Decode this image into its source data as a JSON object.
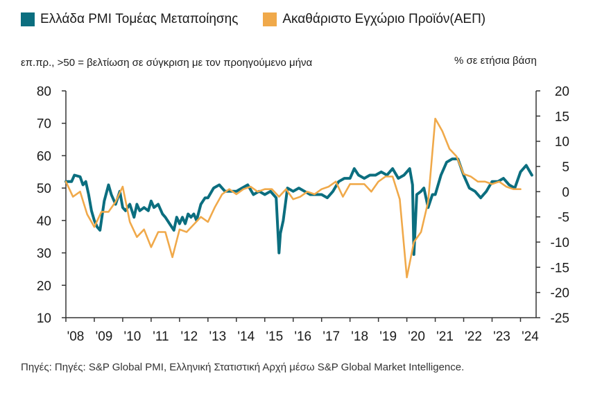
{
  "legend": {
    "series1": "Ελλάδα PMI Τομέας Μεταποίησης",
    "series2": "Ακαθάριστο Εγχώριο Προϊόν(ΑΕΠ)"
  },
  "axis_notes": {
    "left": "επ.πρ., >50 = βελτίωση σε σύγκριση με τον προηγούμενο μήνα",
    "right": "% σε ετήσια βάση"
  },
  "source": "Πηγές: Πηγές: S&P Global PMI, Ελληνική Στατιστική Αρχή μέσω S&P Global Market Intelligence.",
  "colors": {
    "pmi": "#0b6e7f",
    "gdp": "#f0a94a",
    "axis": "#333333"
  },
  "chart_data": {
    "type": "line",
    "x_tick_labels": [
      "'08",
      "'09",
      "'10",
      "'11",
      "'12",
      "'13",
      "'14",
      "'15",
      "'16",
      "'17",
      "'18",
      "'19",
      "'20",
      "'21",
      "'22",
      "'23",
      "'24"
    ],
    "y_left": {
      "ticks": [
        "80",
        "70",
        "60",
        "50",
        "40",
        "30",
        "20",
        "10"
      ],
      "min": 10,
      "max": 80
    },
    "y_right": {
      "ticks": [
        "20",
        "15",
        "10",
        "5",
        "0",
        "-5",
        "-10",
        "-15",
        "-20",
        "-25"
      ],
      "min": -25,
      "max": 20
    },
    "series": [
      {
        "name": "Ελλάδα PMI Τομέας Μεταποίησης",
        "axis": "left",
        "x": [
          2008.0,
          2008.2,
          2008.3,
          2008.5,
          2008.6,
          2008.7,
          2008.8,
          2008.9,
          2009.0,
          2009.1,
          2009.2,
          2009.35,
          2009.5,
          2009.6,
          2009.75,
          2009.9,
          2010.0,
          2010.1,
          2010.25,
          2010.4,
          2010.5,
          2010.6,
          2010.75,
          2010.9,
          2011.0,
          2011.1,
          2011.25,
          2011.4,
          2011.5,
          2011.65,
          2011.8,
          2011.9,
          2012.0,
          2012.1,
          2012.2,
          2012.3,
          2012.4,
          2012.5,
          2012.6,
          2012.75,
          2012.9,
          2013.0,
          2013.2,
          2013.4,
          2013.6,
          2013.8,
          2014.0,
          2014.2,
          2014.4,
          2014.6,
          2014.8,
          2015.0,
          2015.2,
          2015.4,
          2015.5,
          2015.55,
          2015.65,
          2015.8,
          2016.0,
          2016.2,
          2016.4,
          2016.6,
          2016.8,
          2017.0,
          2017.2,
          2017.4,
          2017.6,
          2017.8,
          2018.0,
          2018.15,
          2018.3,
          2018.5,
          2018.7,
          2018.9,
          2019.1,
          2019.3,
          2019.5,
          2019.7,
          2019.9,
          2020.0,
          2020.1,
          2020.2,
          2020.25,
          2020.35,
          2020.5,
          2020.6,
          2020.75,
          2020.9,
          2021.0,
          2021.2,
          2021.4,
          2021.6,
          2021.8,
          2022.0,
          2022.2,
          2022.4,
          2022.6,
          2022.8,
          2023.0,
          2023.2,
          2023.4,
          2023.6,
          2023.8,
          2024.0,
          2024.2,
          2024.4
        ],
        "values": [
          52,
          52,
          54,
          53.5,
          51,
          52,
          48,
          43,
          40,
          38,
          37,
          46,
          51,
          48,
          45,
          49,
          44,
          43,
          45,
          41,
          45,
          43,
          44,
          43,
          46,
          44,
          45,
          42,
          41,
          39,
          37,
          41,
          39,
          41,
          39,
          42,
          41,
          42,
          40,
          45,
          47,
          47,
          50,
          51,
          49,
          49,
          49,
          50,
          51,
          48,
          49,
          48,
          49,
          47,
          30,
          36,
          40,
          50,
          49,
          50,
          49,
          48,
          48,
          48,
          47,
          49,
          52,
          53,
          53,
          56,
          54,
          53,
          54,
          54,
          55,
          54,
          56,
          53,
          54,
          55,
          56,
          51,
          29.5,
          48,
          49,
          50,
          44,
          48,
          48,
          54,
          58,
          59,
          59,
          54,
          50,
          49,
          47,
          49,
          52,
          52,
          53,
          51,
          50,
          55,
          57,
          54
        ]
      },
      {
        "name": "Ακαθάριστο Εγχώριο Προϊόν(ΑΕΠ)",
        "axis": "right",
        "x": [
          2008.0,
          2008.25,
          2008.5,
          2008.75,
          2009.0,
          2009.25,
          2009.5,
          2009.75,
          2010.0,
          2010.25,
          2010.5,
          2010.75,
          2011.0,
          2011.25,
          2011.5,
          2011.75,
          2012.0,
          2012.25,
          2012.5,
          2012.75,
          2013.0,
          2013.25,
          2013.5,
          2013.75,
          2014.0,
          2014.25,
          2014.5,
          2014.75,
          2015.0,
          2015.25,
          2015.5,
          2015.75,
          2016.0,
          2016.25,
          2016.5,
          2016.75,
          2017.0,
          2017.25,
          2017.5,
          2017.75,
          2018.0,
          2018.25,
          2018.5,
          2018.75,
          2019.0,
          2019.25,
          2019.5,
          2019.75,
          2020.0,
          2020.25,
          2020.5,
          2020.75,
          2021.0,
          2021.25,
          2021.5,
          2021.75,
          2022.0,
          2022.25,
          2022.5,
          2022.75,
          2023.0,
          2023.25,
          2023.5,
          2023.75,
          2024.0
        ],
        "values": [
          2,
          -1,
          0,
          -4.5,
          -7,
          -4,
          -4,
          -2,
          1,
          -6,
          -9,
          -7.5,
          -11,
          -8,
          -8,
          -13,
          -7.5,
          -8,
          -6.5,
          -5,
          -6,
          -3,
          -0.5,
          0.5,
          -0.5,
          0.5,
          1,
          0,
          0.5,
          0.5,
          -1,
          0.5,
          -1.5,
          -1,
          0,
          -0.5,
          0.5,
          1,
          2,
          -1,
          1.5,
          1.5,
          1.5,
          0,
          2,
          3,
          3,
          -1.5,
          -17,
          -10,
          -8,
          -2,
          14.5,
          12,
          8.5,
          7,
          3.5,
          3,
          2,
          2,
          1.5,
          2,
          1,
          0.5,
          0.5
        ]
      }
    ]
  }
}
